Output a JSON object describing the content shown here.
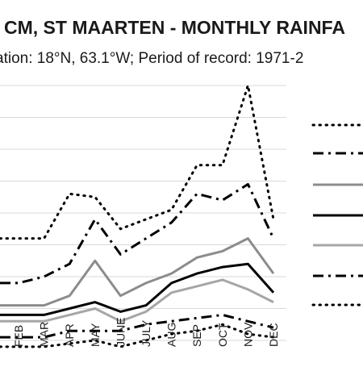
{
  "chart_data": {
    "type": "line",
    "title": "CM, ST MAARTEN - MONTHLY RAINFA",
    "subtitle": "ation: 18°N, 63.1°W; Period of record: 1971-2",
    "categories": [
      "FEB",
      "MAR",
      "APR",
      "MAY",
      "JUNE",
      "JULY",
      "AUG",
      "SEP",
      "OCT",
      "NOV",
      "DEC"
    ],
    "xlabel": "",
    "ylabel": "",
    "ylim": [
      0,
      8
    ],
    "grid": true,
    "legend": "right",
    "series": [
      {
        "style": "dotted-upper",
        "color": "#000000",
        "values": [
          3.2,
          3.2,
          4.6,
          4.5,
          3.5,
          3.8,
          4.1,
          5.5,
          5.5,
          8.0,
          3.8
        ]
      },
      {
        "style": "dashdot-upper",
        "color": "#000000",
        "values": [
          1.8,
          2.0,
          2.4,
          3.8,
          2.7,
          3.2,
          3.7,
          4.6,
          4.4,
          4.9,
          3.2
        ]
      },
      {
        "style": "solid-light-gray",
        "color": "#8c8c8c",
        "values": [
          1.1,
          1.1,
          1.4,
          2.5,
          1.4,
          1.8,
          2.1,
          2.6,
          2.8,
          3.2,
          2.1
        ]
      },
      {
        "style": "solid-black",
        "color": "#000000",
        "values": [
          0.8,
          0.8,
          1.0,
          1.2,
          0.9,
          1.1,
          1.8,
          2.1,
          2.3,
          2.4,
          1.5
        ]
      },
      {
        "style": "solid-gray",
        "color": "#a6a6a6",
        "values": [
          0.6,
          0.6,
          0.8,
          1.0,
          0.6,
          0.9,
          1.5,
          1.7,
          1.9,
          1.6,
          1.2
        ]
      },
      {
        "style": "dashdot-lower",
        "color": "#000000",
        "values": [
          0.1,
          0.1,
          0.3,
          0.3,
          0.3,
          0.5,
          0.6,
          0.7,
          0.8,
          0.6,
          0.4
        ]
      },
      {
        "style": "dotted-lower",
        "color": "#000000",
        "values": [
          -0.2,
          -0.2,
          -0.1,
          0.0,
          -0.2,
          0.0,
          0.2,
          0.3,
          0.5,
          0.2,
          0.1
        ]
      }
    ]
  }
}
